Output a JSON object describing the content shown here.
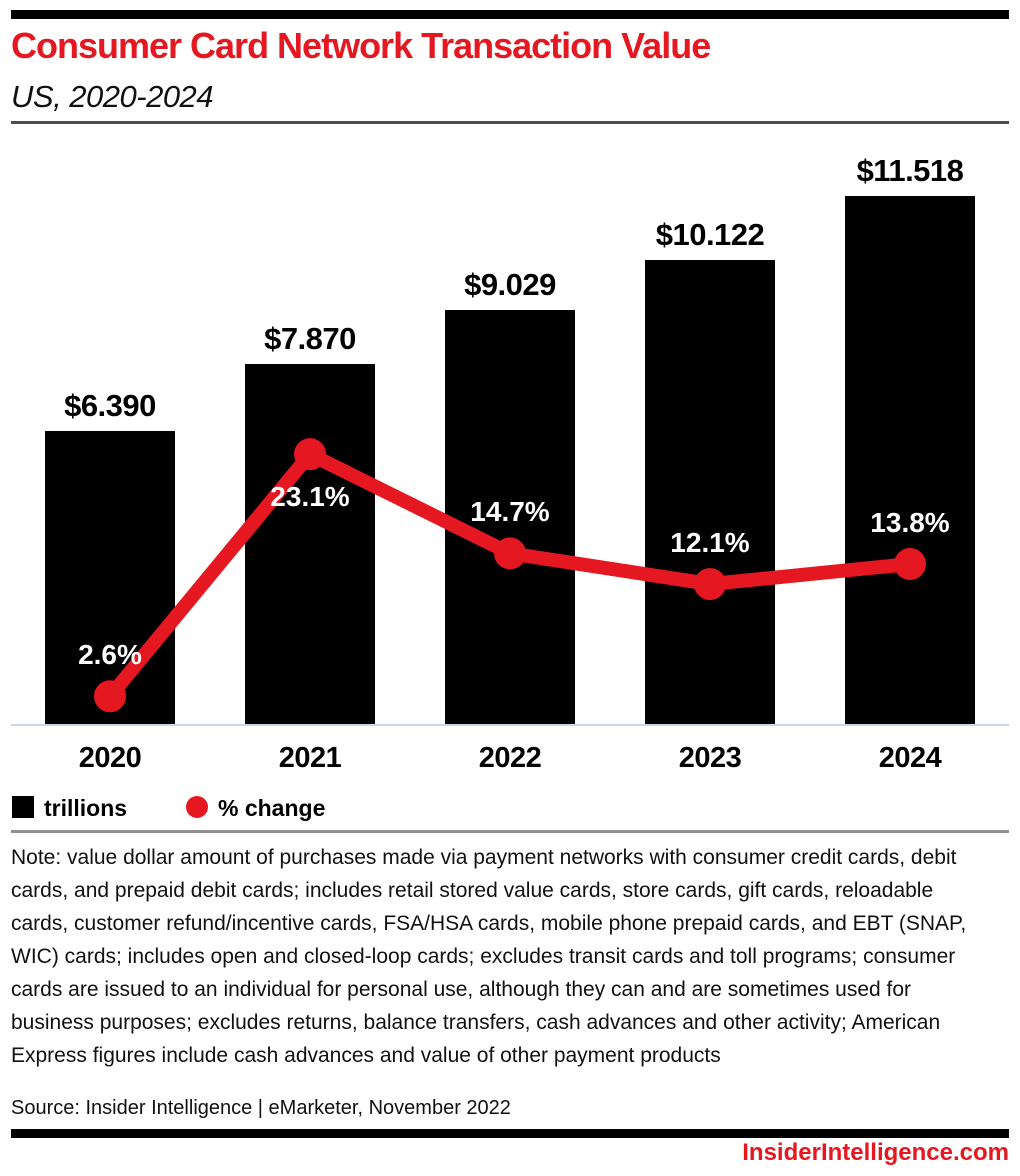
{
  "header": {
    "title": "Consumer Card Network Transaction Value",
    "subtitle": "US, 2020-2024"
  },
  "chart_data": {
    "type": "combo",
    "categories": [
      "2020",
      "2021",
      "2022",
      "2023",
      "2024"
    ],
    "series": [
      {
        "name": "trillions",
        "type": "bar",
        "values": [
          6.39,
          7.87,
          9.029,
          10.122,
          11.518
        ],
        "labels": [
          "$6.390",
          "$7.870",
          "$9.029",
          "$10.122",
          "$11.518"
        ],
        "color": "#000000"
      },
      {
        "name": "% change",
        "type": "line",
        "values": [
          2.6,
          23.1,
          14.7,
          12.1,
          13.8
        ],
        "labels": [
          "2.6%",
          "23.1%",
          "14.7%",
          "12.1%",
          "13.8%"
        ],
        "color": "#e51720",
        "label_positions": [
          "above",
          "below",
          "above",
          "above",
          "above"
        ]
      }
    ],
    "title": "Consumer Card Network Transaction Value",
    "subtitle": "US, 2020-2024",
    "xlabel": "",
    "ylabel": "",
    "bar_axis_range": [
      0,
      12.75
    ],
    "line_axis_range": [
      0,
      49.7
    ],
    "grid": false,
    "legend_position": "bottom-left",
    "legend": [
      "trillions",
      "% change"
    ]
  },
  "legend": {
    "bar_label": "trillions",
    "line_label": "% change"
  },
  "note": "Note: value dollar amount of purchases made via payment networks with consumer credit cards, debit cards, and prepaid debit cards; includes retail stored value cards, store cards, gift cards, reloadable cards, customer refund/incentive cards, FSA/HSA cards, mobile phone prepaid cards, and EBT (SNAP, WIC) cards; includes open and closed-loop cards; excludes transit cards and toll programs; consumer cards are issued to an individual for personal use, although they can and are sometimes used for business purposes; excludes returns, balance transfers, cash advances and other activity; American Express figures include cash advances and value of other payment products",
  "source": "Source: Insider Intelligence | eMarketer, November 2022",
  "footer": {
    "site": "InsiderIntelligence.com"
  },
  "colors": {
    "accent_red": "#e51720",
    "bar_black": "#000000",
    "axis_line": "#ccd5e6",
    "divider_dark": "#4d4d4d",
    "divider_gray": "#909090"
  }
}
